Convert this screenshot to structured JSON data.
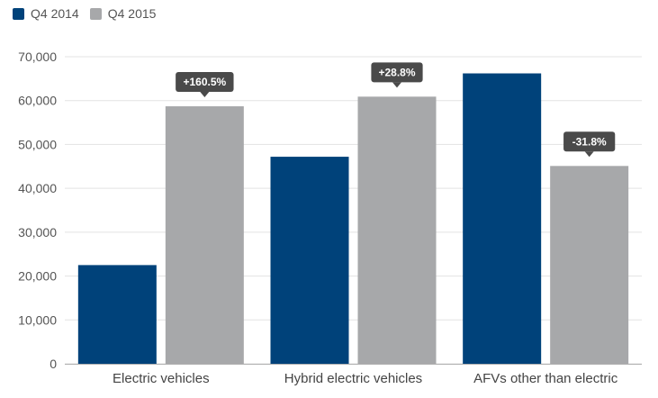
{
  "chart_data": {
    "type": "bar",
    "categories": [
      "Electric vehicles",
      "Hybrid electric vehicles",
      "AFVs other than electric"
    ],
    "series": [
      {
        "name": "Q4 2014",
        "values": [
          22500,
          47200,
          66200
        ],
        "color": "#00427a"
      },
      {
        "name": "Q4 2015",
        "values": [
          58700,
          60900,
          45100
        ],
        "color": "#a7a8aa"
      }
    ],
    "annotations": [
      "+160.5%",
      "+28.8%",
      "-31.8%"
    ],
    "y_ticks": [
      "0",
      "10,000",
      "20,000",
      "30,000",
      "40,000",
      "50,000",
      "60,000",
      "70,000"
    ],
    "ylim": [
      0,
      70000
    ],
    "title": "",
    "xlabel": "",
    "ylabel": "",
    "grid": true,
    "legend_position": "top-left"
  }
}
